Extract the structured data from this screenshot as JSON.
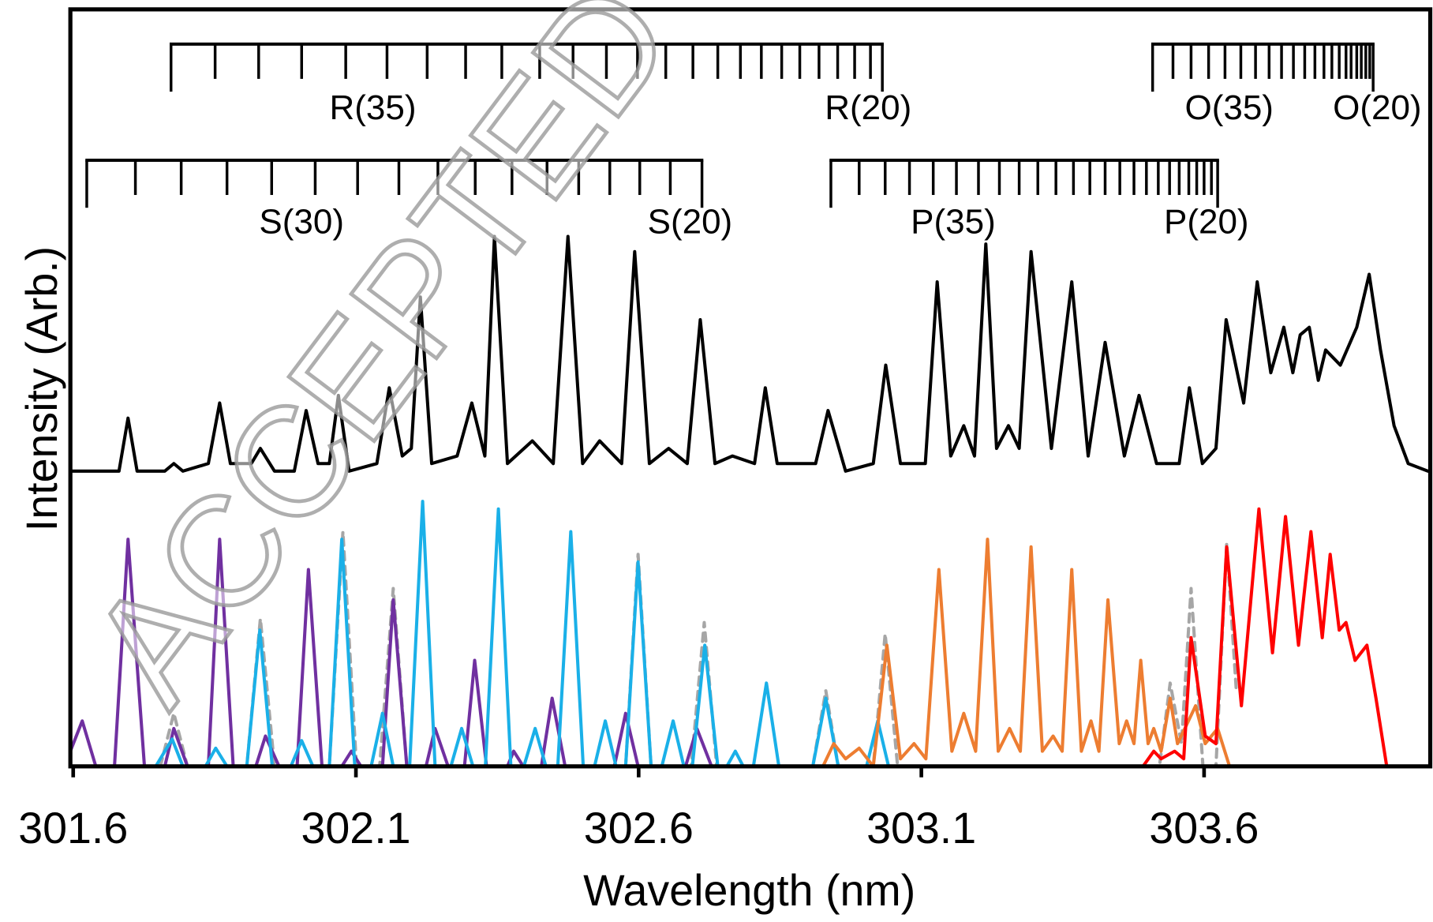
{
  "chart_data": {
    "type": "line",
    "xlabel": "Wavelength (nm)",
    "ylabel": "Intensity (Arb.)",
    "xlim": [
      301.595,
      304.0
    ],
    "ylim": [
      0,
      100
    ],
    "xticks": [
      301.6,
      302.1,
      302.6,
      303.1,
      303.6
    ],
    "watermark": "ACCEPTED MANUSCRIPT",
    "series": [
      {
        "color": "#a6a6a6",
        "style": "dashed",
        "x": [
          301.754,
          301.778,
          301.802,
          301.907,
          301.931,
          301.956,
          302.053,
          302.077,
          302.101,
          302.142,
          302.166,
          302.19,
          302.577,
          302.599,
          302.622,
          302.693,
          302.716,
          302.738,
          302.908,
          302.931,
          302.953,
          303.015,
          303.036,
          303.058,
          303.521,
          303.54,
          303.56,
          303.577,
          303.598,
          303.621,
          303.64,
          303.657
        ],
        "values": [
          0,
          7,
          0,
          0,
          19.5,
          0,
          0,
          31,
          0,
          0,
          23.5,
          0,
          0,
          28,
          0,
          0,
          19,
          0,
          0,
          10,
          0,
          0,
          17.5,
          0,
          0,
          11,
          3,
          23.5,
          0,
          0,
          29.5,
          10
        ]
      },
      {
        "color": "#7030a0",
        "style": "solid",
        "x": [
          301.595,
          301.616,
          301.64,
          301.673,
          301.697,
          301.726,
          301.762,
          301.778,
          301.802,
          301.839,
          301.859,
          301.883,
          301.923,
          301.94,
          301.964,
          301.996,
          302.016,
          302.04,
          302.075,
          302.092,
          302.109,
          302.147,
          302.166,
          302.19,
          302.224,
          302.24,
          302.263,
          302.292,
          302.31,
          302.331,
          302.368,
          302.379,
          302.396,
          302.428,
          302.447,
          302.47,
          302.557,
          302.577,
          302.599,
          302.683,
          302.703,
          302.729,
          302.764
        ],
        "values": [
          2,
          6,
          0,
          0,
          30,
          0,
          0,
          5,
          0,
          0,
          30,
          0,
          0,
          4,
          0,
          0,
          26,
          0,
          0,
          2,
          0,
          0,
          22,
          0,
          0,
          5,
          0,
          0,
          14,
          0,
          0,
          2,
          0,
          0,
          9,
          0,
          0,
          7,
          0,
          0,
          5,
          0,
          0
        ]
      },
      {
        "color": "#1ab0e8",
        "style": "solid",
        "x": [
          301.746,
          301.775,
          301.794,
          301.834,
          301.852,
          301.872,
          301.907,
          301.93,
          301.952,
          301.985,
          302.004,
          302.024,
          302.053,
          302.075,
          302.098,
          302.127,
          302.147,
          302.166,
          302.195,
          302.218,
          302.24,
          302.268,
          302.287,
          302.307,
          302.329,
          302.352,
          302.374,
          302.397,
          302.417,
          302.436,
          302.457,
          302.48,
          302.502,
          302.522,
          302.541,
          302.56,
          302.577,
          302.599,
          302.622,
          302.641,
          302.661,
          302.68,
          302.695,
          302.717,
          302.74,
          302.756,
          302.771,
          302.785,
          302.803,
          302.826,
          302.848,
          302.908,
          302.931,
          302.953,
          303.003,
          303.023,
          303.042
        ],
        "values": [
          0,
          3.6,
          0,
          0,
          2.4,
          0,
          0,
          18,
          0,
          0,
          3.4,
          0,
          0,
          30,
          0,
          0,
          7,
          0,
          0,
          35,
          0,
          0,
          5,
          0,
          0,
          34,
          0,
          0,
          5,
          0,
          0,
          31,
          0,
          0,
          6,
          0,
          0,
          27,
          0,
          0,
          6,
          0,
          0,
          16,
          0,
          0,
          2,
          0,
          0,
          11,
          0,
          0,
          9,
          0,
          0,
          6,
          0
        ]
      },
      {
        "color": "#ed7d31",
        "style": "solid",
        "x": [
          302.926,
          302.945,
          302.966,
          302.99,
          303.015,
          303.039,
          303.063,
          303.087,
          303.108,
          303.131,
          303.154,
          303.175,
          303.196,
          303.217,
          303.236,
          303.256,
          303.275,
          303.294,
          303.314,
          303.333,
          303.349,
          303.366,
          303.383,
          303.4,
          303.414,
          303.43,
          303.45,
          303.463,
          303.476,
          303.488,
          303.501,
          303.511,
          303.524,
          303.54,
          303.553,
          303.566,
          303.585,
          303.602,
          303.624,
          303.645
        ],
        "values": [
          0,
          3,
          1,
          2.4,
          0,
          16,
          1,
          3,
          1,
          26,
          2,
          7,
          2,
          30,
          2,
          5,
          2,
          29,
          2,
          4,
          2,
          26,
          2,
          6,
          2,
          22,
          3,
          6,
          3,
          14,
          3,
          5,
          2,
          9,
          3,
          5,
          8,
          3,
          5,
          0
        ]
      },
      {
        "color": "#ff0000",
        "style": "solid",
        "x": [
          303.492,
          303.511,
          303.524,
          303.548,
          303.564,
          303.577,
          303.602,
          303.621,
          303.64,
          303.666,
          303.697,
          303.721,
          303.744,
          303.767,
          303.789,
          303.809,
          303.823,
          303.839,
          303.851,
          303.867,
          303.888,
          303.904,
          303.923
        ],
        "values": [
          0,
          2,
          1,
          2,
          1,
          17,
          4,
          3,
          29,
          8,
          34,
          15,
          33,
          16,
          31,
          17,
          28,
          18,
          19,
          14,
          16,
          9,
          0
        ]
      },
      {
        "color": "#000000",
        "style": "solid",
        "x": [
          301.595,
          301.649,
          301.681,
          301.697,
          301.713,
          301.762,
          301.778,
          301.794,
          301.839,
          301.859,
          301.878,
          301.915,
          301.931,
          301.956,
          301.991,
          302.012,
          302.033,
          302.053,
          302.069,
          302.088,
          302.137,
          302.159,
          302.182,
          302.198,
          302.214,
          302.234,
          302.279,
          302.305,
          302.328,
          302.345,
          302.368,
          302.412,
          302.449,
          302.475,
          302.501,
          302.531,
          302.57,
          302.593,
          302.619,
          302.653,
          302.686,
          302.709,
          302.735,
          302.766,
          302.805,
          302.824,
          302.845,
          302.877,
          302.913,
          302.935,
          302.966,
          303.015,
          303.037,
          303.063,
          303.107,
          303.128,
          303.152,
          303.175,
          303.194,
          303.214,
          303.233,
          303.254,
          303.273,
          303.294,
          303.33,
          303.366,
          303.395,
          303.425,
          303.459,
          303.485,
          303.516,
          303.556,
          303.574,
          303.597,
          303.621,
          303.639,
          303.67,
          303.694,
          303.718,
          303.741,
          303.757,
          303.77,
          303.786,
          303.802,
          303.815,
          303.841,
          303.87,
          303.892,
          303.912,
          303.936,
          303.961,
          303.996
        ],
        "values": [
          39,
          39,
          39,
          46,
          39,
          39,
          40,
          39,
          40,
          48,
          40,
          40,
          42,
          39,
          39,
          47,
          40,
          40,
          49,
          39,
          40,
          50,
          41,
          42,
          62,
          40,
          41,
          48,
          41,
          70,
          40,
          43,
          40,
          70,
          40,
          43,
          40,
          68,
          40,
          42,
          40,
          59,
          40,
          41,
          40,
          50,
          40,
          40,
          40,
          47,
          39,
          40,
          53,
          40,
          40,
          64,
          41,
          45,
          41,
          69,
          42,
          45,
          42,
          68,
          42,
          64,
          41,
          56,
          41,
          49,
          40,
          40,
          50,
          40,
          42,
          59,
          48,
          64,
          52,
          58,
          52,
          57,
          58,
          51,
          55,
          53,
          58,
          65,
          55,
          45,
          40,
          39
        ]
      }
    ],
    "branches": [
      {
        "labels": [
          "R(35)",
          "R(20)"
        ],
        "lines": [
          301.773,
          301.851,
          301.928,
          302.004,
          302.082,
          302.155,
          302.226,
          302.294,
          302.358,
          302.425,
          302.484,
          302.543,
          302.598,
          302.648,
          302.696,
          302.74,
          302.78,
          302.817,
          302.853,
          302.885,
          302.919,
          302.952,
          302.982,
          303.01,
          303.031
        ]
      },
      {
        "labels": [
          "O(35)",
          "O(20)"
        ],
        "lines": [
          303.509,
          303.545,
          303.577,
          303.608,
          303.637,
          303.665,
          303.691,
          303.715,
          303.737,
          303.758,
          303.778,
          303.796,
          303.812,
          303.826,
          303.839,
          303.851,
          303.86,
          303.87,
          303.878,
          303.886,
          303.893,
          303.899
        ]
      },
      {
        "labels": [
          "S(30)",
          "S(20)"
        ],
        "lines": [
          301.624,
          301.71,
          301.791,
          301.872,
          301.951,
          302.028,
          302.103,
          302.176,
          302.245,
          302.311,
          302.376,
          302.438,
          302.494,
          302.549,
          302.602,
          302.656,
          302.712
        ]
      },
      {
        "labels": [
          "P(35)",
          "P(20)"
        ],
        "lines": [
          302.94,
          302.99,
          303.036,
          303.079,
          303.121,
          303.162,
          303.201,
          303.238,
          303.273,
          303.306,
          303.338,
          303.369,
          303.398,
          303.425,
          303.451,
          303.476,
          303.498,
          303.519,
          303.539,
          303.556,
          303.573,
          303.587,
          303.6,
          303.613,
          303.624
        ]
      }
    ]
  }
}
